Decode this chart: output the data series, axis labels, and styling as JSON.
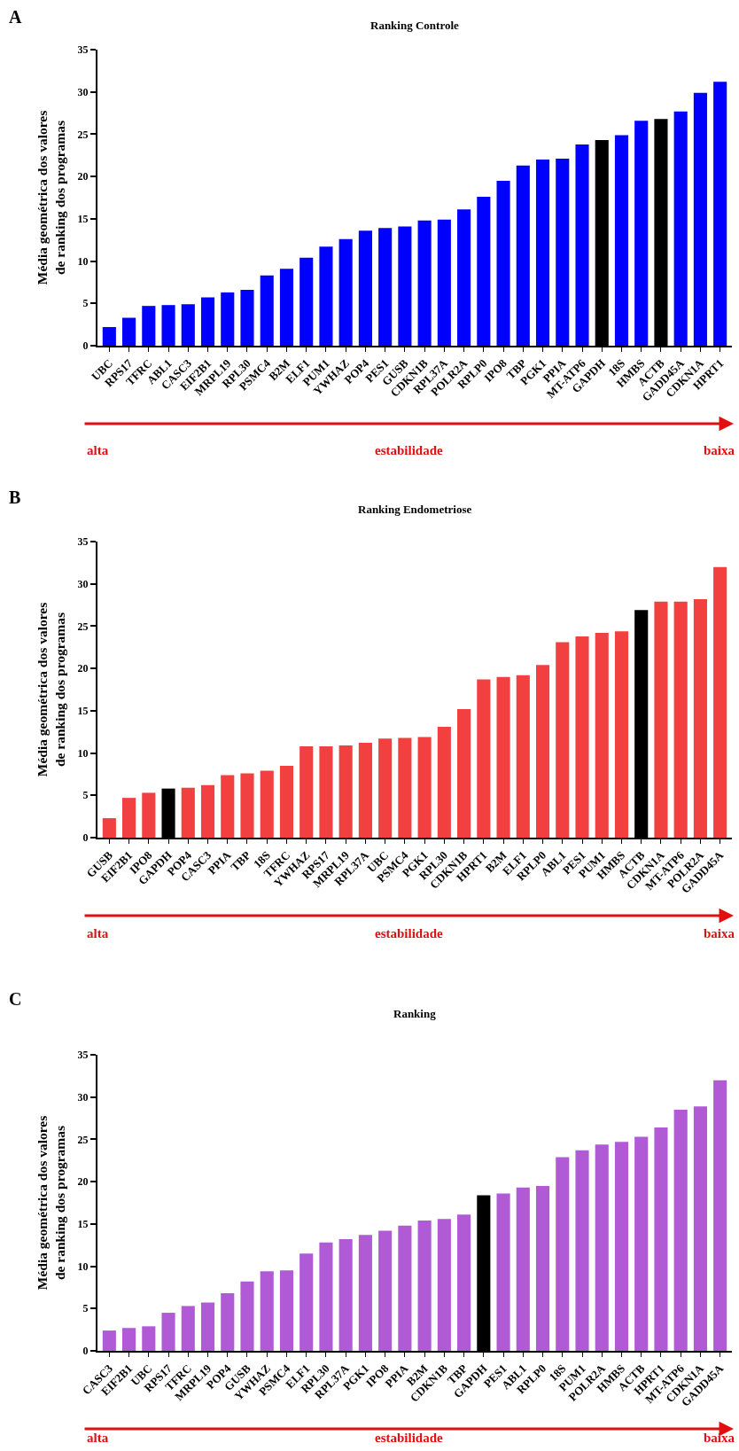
{
  "chart_data": [
    {
      "type": "bar",
      "title": "Ranking Controle",
      "ylabel": "Média geométrica dos valores\nde ranking dos programas",
      "ylim": [
        0,
        35
      ],
      "yticks": [
        0,
        5,
        10,
        15,
        20,
        25,
        30,
        35
      ],
      "annotations": [
        "A",
        "alta",
        "estabilidade",
        "baixa"
      ],
      "categories": [
        "UBC",
        "RPS17",
        "TFRC",
        "ABL1",
        "CASC3",
        "EIF2B1",
        "MRPL19",
        "RPL30",
        "PSMC4",
        "B2M",
        "ELF1",
        "PUM1",
        "YWHAZ",
        "POP4",
        "PES1",
        "GUSB",
        "CDKN1B",
        "RPL37A",
        "POLR2A",
        "RPLP0",
        "IPO8",
        "TBP",
        "PGK1",
        "PPIA",
        "MT-ATP6",
        "GAPDH",
        "18S",
        "HMBS",
        "ACTB",
        "GADD45A",
        "CDKN1A",
        "HPRT1"
      ],
      "values": [
        2.2,
        3.3,
        4.7,
        4.8,
        4.9,
        5.7,
        6.3,
        6.6,
        8.3,
        9.1,
        10.4,
        11.7,
        12.6,
        13.6,
        13.9,
        14.1,
        14.8,
        14.9,
        16.1,
        17.6,
        19.5,
        21.3,
        22.0,
        22.1,
        23.8,
        24.3,
        24.9,
        26.6,
        26.8,
        27.7,
        29.9,
        31.2
      ],
      "colors": [
        "#0000ff",
        "#0000ff",
        "#0000ff",
        "#0000ff",
        "#0000ff",
        "#0000ff",
        "#0000ff",
        "#0000ff",
        "#0000ff",
        "#0000ff",
        "#0000ff",
        "#0000ff",
        "#0000ff",
        "#0000ff",
        "#0000ff",
        "#0000ff",
        "#0000ff",
        "#0000ff",
        "#0000ff",
        "#0000ff",
        "#0000ff",
        "#0000ff",
        "#0000ff",
        "#0000ff",
        "#0000ff",
        "#000000",
        "#0000ff",
        "#0000ff",
        "#000000",
        "#0000ff",
        "#0000ff",
        "#0000ff"
      ]
    },
    {
      "type": "bar",
      "title": "Ranking Endometriose",
      "ylabel": "Média geométrica dos valores\nde ranking dos programas",
      "ylim": [
        0,
        35
      ],
      "yticks": [
        0,
        5,
        10,
        15,
        20,
        25,
        30,
        35
      ],
      "annotations": [
        "B",
        "alta",
        "estabilidade",
        "baixa"
      ],
      "categories": [
        "GUSB",
        "EIF2B1",
        "IPO8",
        "GAPDH",
        "POP4",
        "CASC3",
        "PPIA",
        "TBP",
        "18S",
        "TFRC",
        "YWHAZ",
        "RPS17",
        "MRPL19",
        "RPL37A",
        "UBC",
        "PSMC4",
        "PGK1",
        "RPL30",
        "CDKN1B",
        "HPRT1",
        "B2M",
        "ELF1",
        "RPLP0",
        "ABL1",
        "PES1",
        "PUM1",
        "HMBS",
        "ACTB",
        "CDKN1A",
        "MT-ATP6",
        "POLR2A",
        "GADD45A"
      ],
      "values": [
        2.3,
        4.7,
        5.3,
        5.8,
        5.9,
        6.2,
        7.4,
        7.6,
        7.9,
        8.5,
        10.8,
        10.8,
        10.9,
        11.2,
        11.7,
        11.8,
        11.9,
        13.1,
        15.2,
        18.7,
        19.0,
        19.2,
        20.4,
        23.1,
        23.8,
        24.2,
        24.4,
        26.9,
        27.9,
        27.9,
        28.2,
        32.0
      ],
      "colors": [
        "#f24040",
        "#f24040",
        "#f24040",
        "#000000",
        "#f24040",
        "#f24040",
        "#f24040",
        "#f24040",
        "#f24040",
        "#f24040",
        "#f24040",
        "#f24040",
        "#f24040",
        "#f24040",
        "#f24040",
        "#f24040",
        "#f24040",
        "#f24040",
        "#f24040",
        "#f24040",
        "#f24040",
        "#f24040",
        "#f24040",
        "#f24040",
        "#f24040",
        "#f24040",
        "#f24040",
        "#000000",
        "#f24040",
        "#f24040",
        "#f24040",
        "#f24040"
      ]
    },
    {
      "type": "bar",
      "title": "Ranking",
      "ylabel": "Média geométrica dos valores\nde ranking dos programas",
      "ylim": [
        0,
        35
      ],
      "yticks": [
        0,
        5,
        10,
        15,
        20,
        25,
        30,
        35
      ],
      "annotations": [
        "C",
        "alta",
        "estabilidade",
        "baixa"
      ],
      "categories": [
        "CASC3",
        "EIF2B1",
        "UBC",
        "RPS17",
        "TFRC",
        "MRPL19",
        "POP4",
        "GUSB",
        "YWHAZ",
        "PSMC4",
        "ELF1",
        "RPL30",
        "RPL37A",
        "PGK1",
        "IPO8",
        "PPIA",
        "B2M",
        "CDKN1B",
        "TBP",
        "GAPDH",
        "PES1",
        "ABL1",
        "RPLP0",
        "18S",
        "PUM1",
        "POLR2A",
        "HMBS",
        "ACTB",
        "HPRT1",
        "MT-ATP6",
        "CDKN1A",
        "GADD45A"
      ],
      "values": [
        2.4,
        2.7,
        2.9,
        4.5,
        5.3,
        5.7,
        6.8,
        8.2,
        9.4,
        9.5,
        11.5,
        12.8,
        13.2,
        13.7,
        14.2,
        14.8,
        15.4,
        15.6,
        16.1,
        18.4,
        18.6,
        19.3,
        19.5,
        22.9,
        23.7,
        24.4,
        24.7,
        25.3,
        26.4,
        28.5,
        28.9,
        32.0
      ],
      "colors": [
        "#b05ad6",
        "#b05ad6",
        "#b05ad6",
        "#b05ad6",
        "#b05ad6",
        "#b05ad6",
        "#b05ad6",
        "#b05ad6",
        "#b05ad6",
        "#b05ad6",
        "#b05ad6",
        "#b05ad6",
        "#b05ad6",
        "#b05ad6",
        "#b05ad6",
        "#b05ad6",
        "#b05ad6",
        "#b05ad6",
        "#b05ad6",
        "#000000",
        "#b05ad6",
        "#b05ad6",
        "#b05ad6",
        "#b05ad6",
        "#b05ad6",
        "#b05ad6",
        "#b05ad6",
        "#b05ad6",
        "#b05ad6",
        "#b05ad6",
        "#b05ad6",
        "#b05ad6"
      ]
    }
  ]
}
